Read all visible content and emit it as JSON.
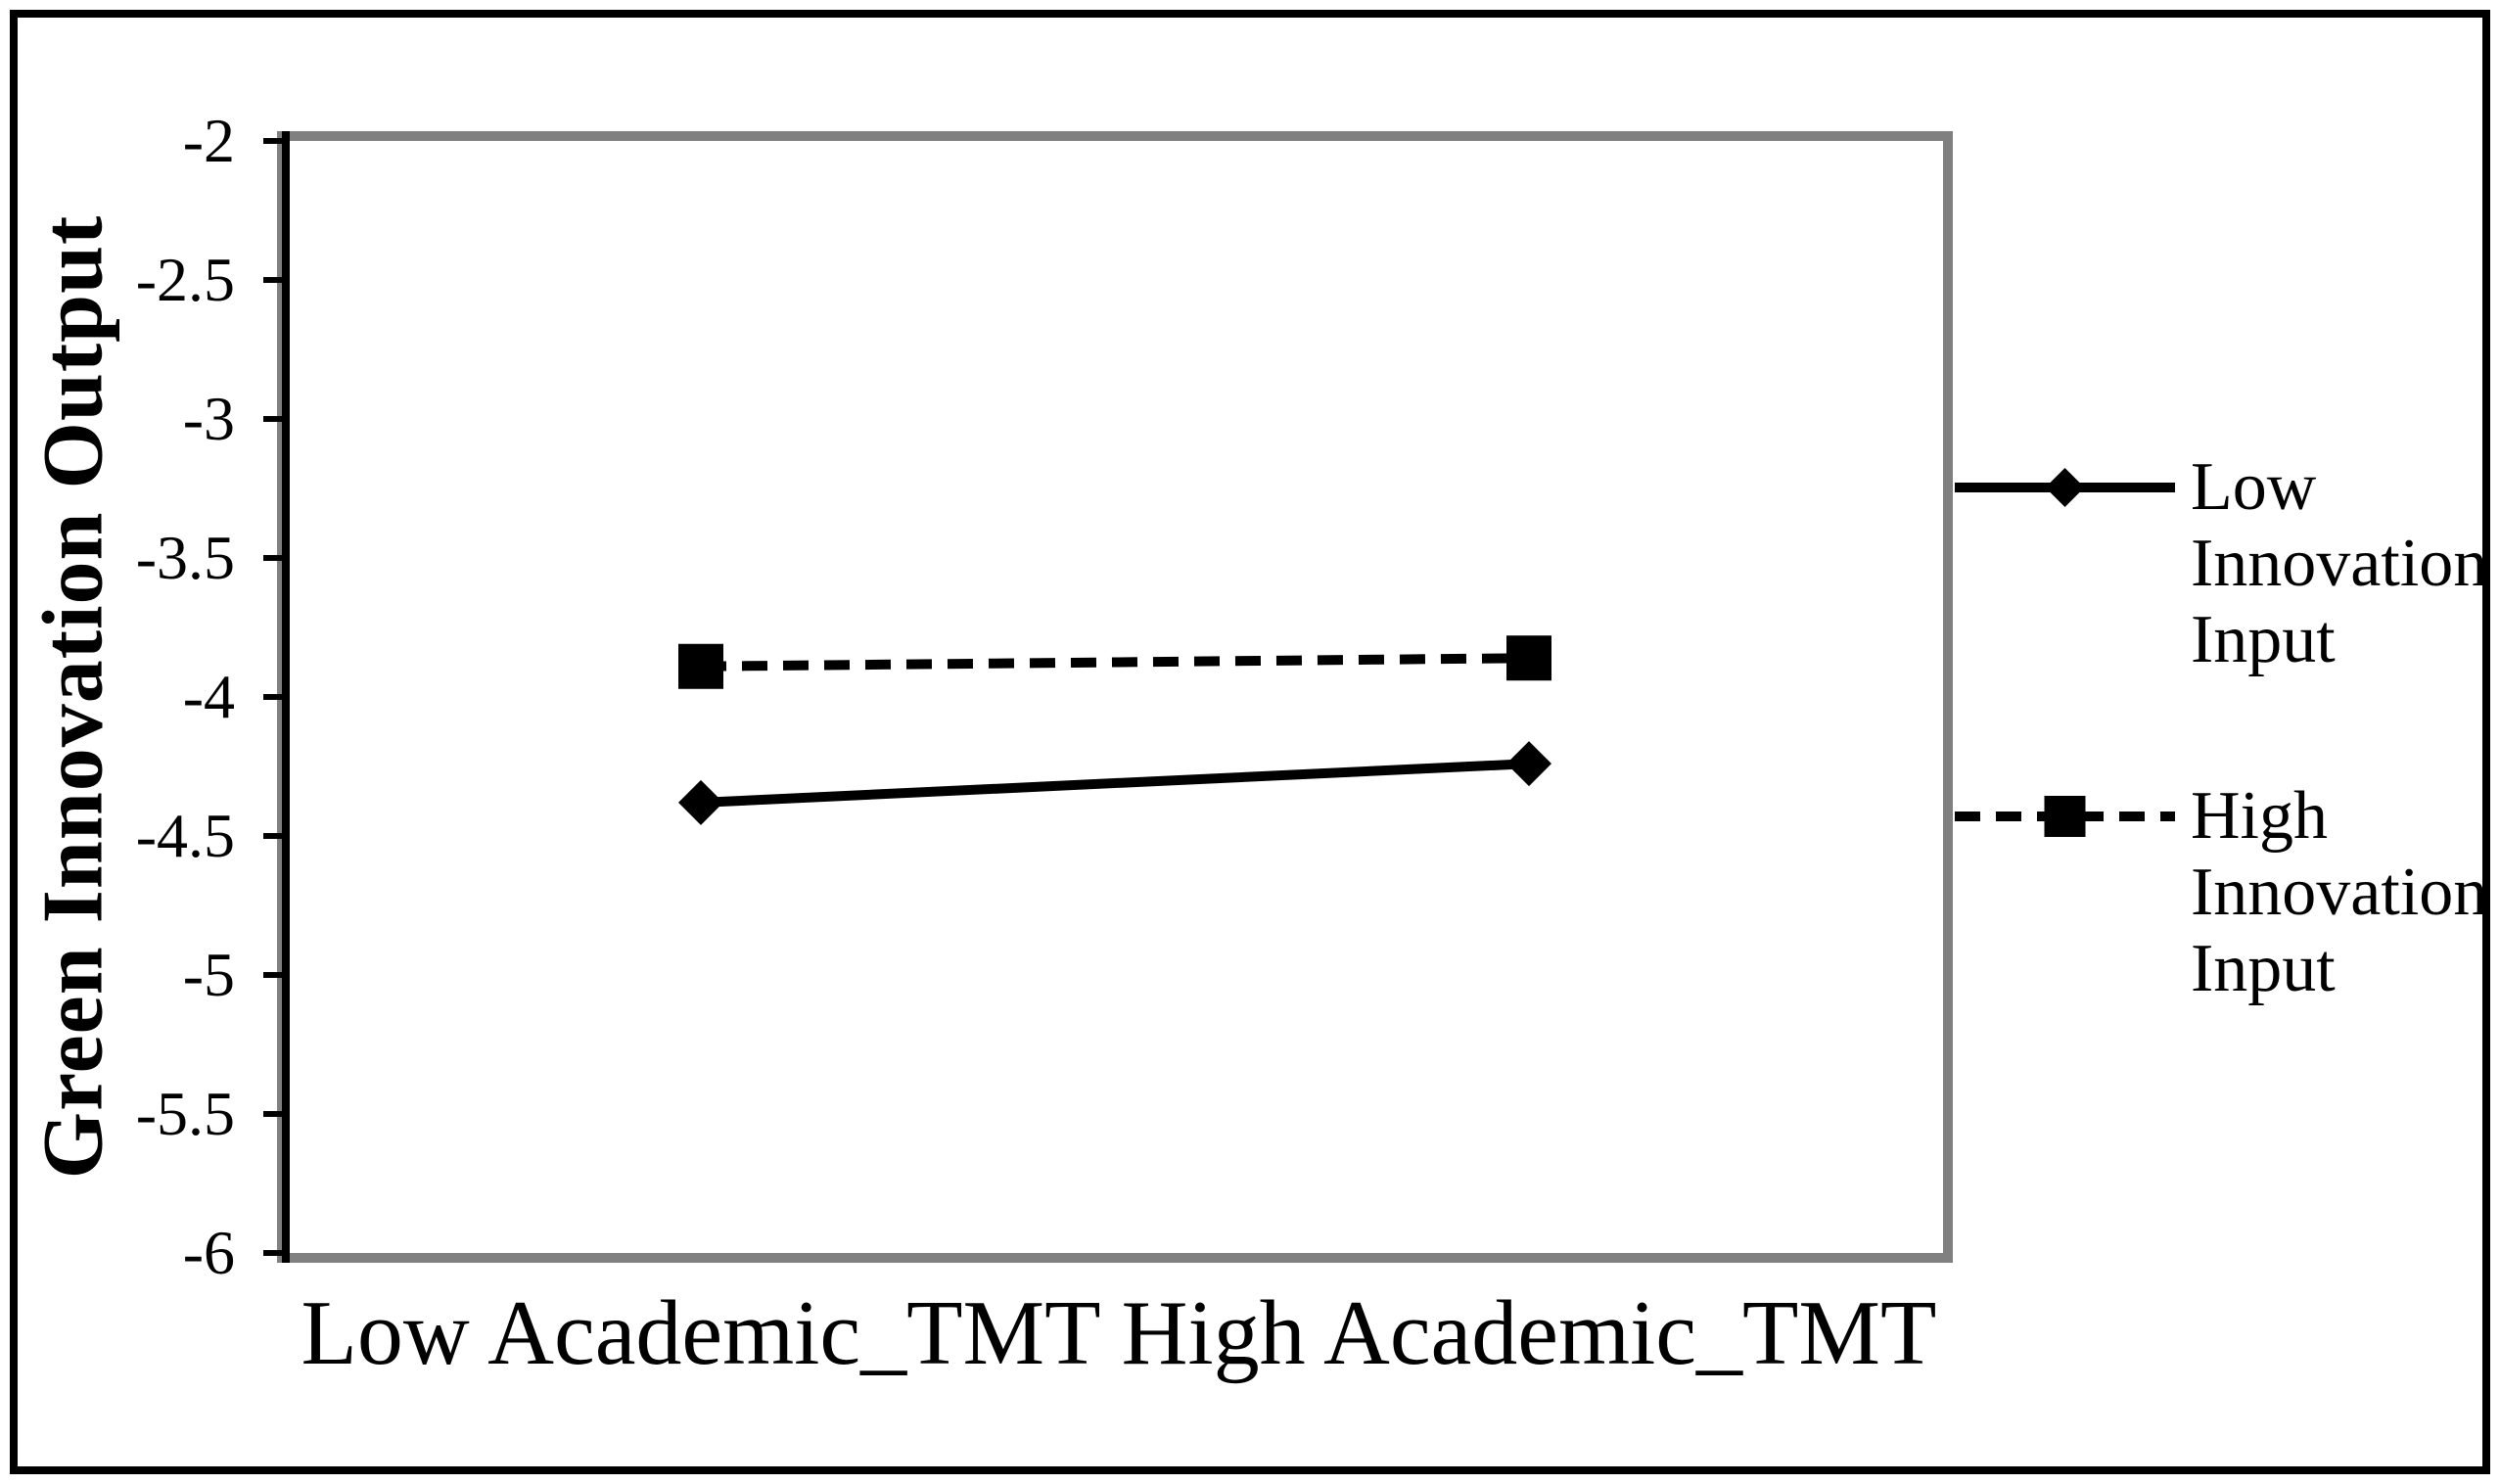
{
  "chart_data": {
    "type": "line",
    "categories": [
      "Low Academic_TMT",
      "High Academic_TMT"
    ],
    "series": [
      {
        "name": "Low Innovation Input",
        "values": [
          -4.38,
          -4.24
        ],
        "line_style": "solid",
        "marker": "diamond",
        "color": "#000000"
      },
      {
        "name": "High Innovation Input",
        "values": [
          -3.89,
          -3.86
        ],
        "line_style": "dashed",
        "marker": "square",
        "color": "#000000"
      }
    ],
    "ylabel": "Green Innovation Output",
    "xlabel": "",
    "title": "",
    "ylim": [
      -6,
      -2
    ],
    "ytick_step": 0.5,
    "yticks": [
      "-2",
      "-2.5",
      "-3",
      "-3.5",
      "-4",
      "-4.5",
      "-5",
      "-5.5",
      "-6"
    ],
    "grid": false,
    "legend_position": "right",
    "colors": {
      "series": "#000000",
      "plot_border": "#808080",
      "figure_border": "#000000",
      "background": "#ffffff"
    }
  }
}
